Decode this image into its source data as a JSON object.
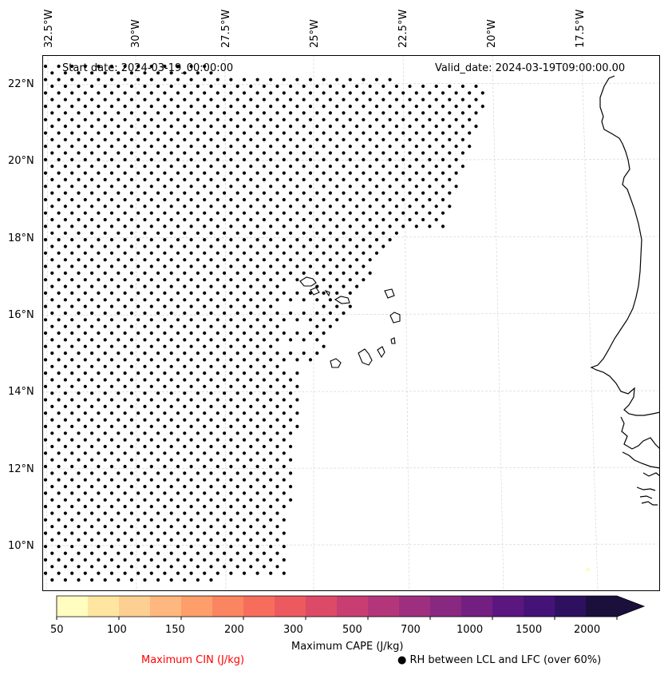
{
  "header": {
    "start_date": "Start date: 2024-03-19_00:00:00",
    "valid_date": "Valid_date: 2024-03-19T09:00:00.00"
  },
  "longitude_labels": [
    "32.5°W",
    "30°W",
    "27.5°W",
    "25°W",
    "22.5°W",
    "20°W",
    "17.5°W"
  ],
  "latitude_labels": [
    "22°N",
    "20°N",
    "18°N",
    "16°N",
    "14°N",
    "12°N",
    "10°N"
  ],
  "colorbar": {
    "title": "Maximum CAPE (J/kg)",
    "tick_labels": [
      "50",
      "100",
      "150",
      "200",
      "300",
      "500",
      "700",
      "1000",
      "1500",
      "2000"
    ],
    "colors": [
      "#fffdbf",
      "#fee6a1",
      "#fecf92",
      "#feb77e",
      "#fd9e6b",
      "#fb8560",
      "#f76d5c",
      "#ec5a5f",
      "#dd4a68",
      "#c83e72",
      "#b3367a",
      "#9e2f7f",
      "#892881",
      "#731f81",
      "#5c167f",
      "#451377",
      "#2d1160",
      "#1b0f3c"
    ]
  },
  "legend": {
    "cin_label": "Maximum CIN (J/kg)",
    "rh_label": "● RH between LCL and LFC (over 60%)",
    "cin_color": "#ff0000"
  }
}
